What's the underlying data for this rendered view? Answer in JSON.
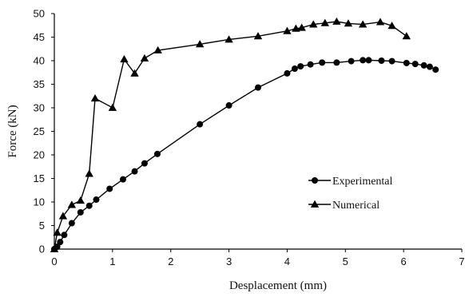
{
  "chart_data": {
    "type": "line",
    "xlabel": "Desplacement  (mm)",
    "ylabel": "Force  (kN)",
    "xlim": [
      0,
      7
    ],
    "ylim": [
      0,
      50
    ],
    "xticks": [
      "0",
      "1",
      "2",
      "3",
      "4",
      "5",
      "6",
      "7"
    ],
    "yticks": [
      "0",
      "5",
      "10",
      "15",
      "20",
      "25",
      "30",
      "35",
      "40",
      "45",
      "50"
    ],
    "grid": false,
    "legend_position": "lower-right",
    "series": [
      {
        "name": "Experimental",
        "marker": "circle",
        "x": [
          0.0,
          0.05,
          0.1,
          0.17,
          0.3,
          0.45,
          0.6,
          0.72,
          0.95,
          1.18,
          1.38,
          1.55,
          1.77,
          2.5,
          3.0,
          3.5,
          4.0,
          4.13,
          4.23,
          4.4,
          4.6,
          4.85,
          5.1,
          5.3,
          5.4,
          5.62,
          5.8,
          6.05,
          6.2,
          6.35,
          6.45,
          6.55
        ],
        "y": [
          0.0,
          0.5,
          1.5,
          3.0,
          5.5,
          7.8,
          9.2,
          10.5,
          12.8,
          14.8,
          16.5,
          18.2,
          20.2,
          26.5,
          30.5,
          34.3,
          37.3,
          38.3,
          38.8,
          39.2,
          39.6,
          39.6,
          39.9,
          40.1,
          40.1,
          40.0,
          39.9,
          39.5,
          39.3,
          39.0,
          38.7,
          38.1
        ]
      },
      {
        "name": "Numerical",
        "marker": "triangle",
        "x": [
          0.0,
          0.05,
          0.15,
          0.3,
          0.45,
          0.6,
          0.7,
          1.0,
          1.2,
          1.38,
          1.55,
          1.78,
          2.5,
          3.0,
          3.5,
          4.0,
          4.15,
          4.25,
          4.45,
          4.65,
          4.85,
          5.05,
          5.3,
          5.6,
          5.8,
          6.05
        ],
        "y": [
          0.0,
          3.5,
          7.0,
          9.4,
          10.3,
          16.0,
          32.0,
          30.0,
          40.3,
          37.3,
          40.5,
          42.2,
          43.5,
          44.5,
          45.2,
          46.3,
          46.8,
          47.0,
          47.7,
          48.0,
          48.3,
          47.9,
          47.7,
          48.2,
          47.4,
          45.2
        ]
      }
    ]
  }
}
